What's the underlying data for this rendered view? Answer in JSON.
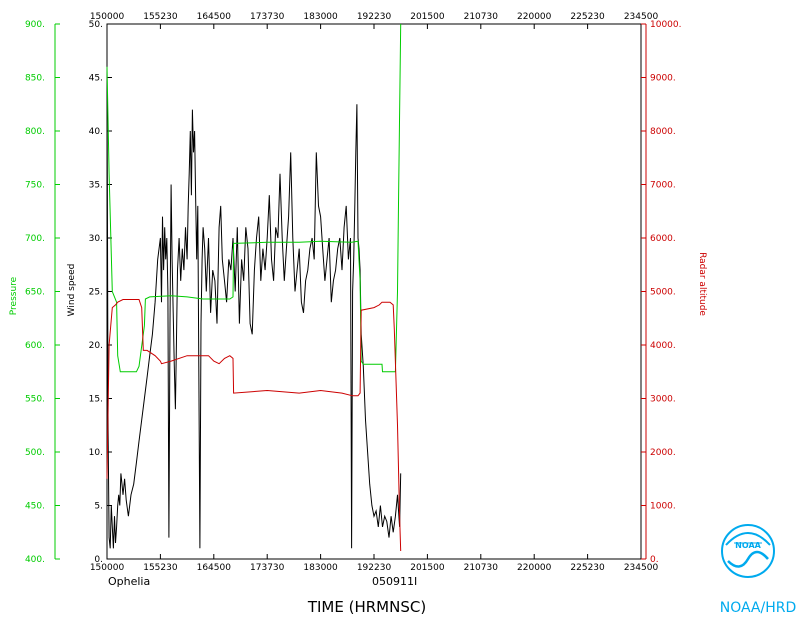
{
  "chart_data": {
    "type": "line",
    "storm": "Ophelia",
    "date_code": "050911I",
    "xlabel": "TIME (HRMNSC)",
    "credit": "NOAA/HRD",
    "colors": {
      "wind": "#000000",
      "pressure": "#00cc00",
      "altitude": "#cc0000"
    },
    "x_ticks": [
      "150000",
      "155230",
      "164500",
      "173730",
      "183000",
      "192230",
      "201500",
      "210730",
      "220000",
      "225230",
      "234500"
    ],
    "axes": {
      "wind": {
        "label": "Wind speed",
        "min": 0,
        "max": 50,
        "ticks": [
          "0.",
          "5.",
          "10.",
          "15.",
          "20.",
          "25.",
          "30.",
          "35.",
          "40.",
          "45.",
          "50."
        ]
      },
      "pressure": {
        "label": "Pressure",
        "min": 400,
        "max": 900,
        "ticks": [
          "400.",
          "450.",
          "500.",
          "550.",
          "600.",
          "650.",
          "700.",
          "750.",
          "800.",
          "850.",
          "900."
        ]
      },
      "altitude": {
        "label": "Radar altitude",
        "min": 0,
        "max": 10000,
        "ticks": [
          "0.",
          "1000.",
          "2000.",
          "3000.",
          "4000.",
          "5000.",
          "6000.",
          "7000.",
          "8000.",
          "9000.",
          "10000."
        ]
      }
    },
    "series": [
      {
        "name": "Wind speed",
        "axis": "wind",
        "points": [
          [
            0,
            45.5
          ],
          [
            0.02,
            12
          ],
          [
            0.04,
            2
          ],
          [
            0.06,
            1
          ],
          [
            0.08,
            5
          ],
          [
            0.1,
            3
          ],
          [
            0.12,
            1
          ],
          [
            0.14,
            4
          ],
          [
            0.16,
            1.5
          ],
          [
            0.18,
            3
          ],
          [
            0.2,
            5
          ],
          [
            0.22,
            6
          ],
          [
            0.24,
            5
          ],
          [
            0.26,
            8
          ],
          [
            0.28,
            7
          ],
          [
            0.3,
            6
          ],
          [
            0.33,
            7.5
          ],
          [
            0.36,
            5.5
          ],
          [
            0.4,
            4
          ],
          [
            0.45,
            6
          ],
          [
            0.5,
            7
          ],
          [
            0.55,
            9
          ],
          [
            0.6,
            11
          ],
          [
            0.65,
            13
          ],
          [
            0.7,
            15
          ],
          [
            0.75,
            17
          ],
          [
            0.8,
            19
          ],
          [
            0.85,
            21
          ],
          [
            0.9,
            24
          ],
          [
            0.95,
            28
          ],
          [
            1.0,
            30
          ],
          [
            1.02,
            24
          ],
          [
            1.04,
            32
          ],
          [
            1.06,
            27
          ],
          [
            1.08,
            31
          ],
          [
            1.1,
            28
          ],
          [
            1.12,
            30
          ],
          [
            1.14,
            25
          ],
          [
            1.16,
            2
          ],
          [
            1.18,
            22
          ],
          [
            1.2,
            35
          ],
          [
            1.22,
            28
          ],
          [
            1.24,
            23
          ],
          [
            1.26,
            18
          ],
          [
            1.28,
            14
          ],
          [
            1.3,
            20
          ],
          [
            1.32,
            27
          ],
          [
            1.35,
            30
          ],
          [
            1.38,
            26
          ],
          [
            1.41,
            29
          ],
          [
            1.44,
            27
          ],
          [
            1.47,
            31
          ],
          [
            1.5,
            28
          ],
          [
            1.52,
            33
          ],
          [
            1.54,
            36
          ],
          [
            1.56,
            40
          ],
          [
            1.58,
            34
          ],
          [
            1.6,
            42
          ],
          [
            1.62,
            38
          ],
          [
            1.64,
            40
          ],
          [
            1.66,
            34
          ],
          [
            1.68,
            28
          ],
          [
            1.7,
            33
          ],
          [
            1.72,
            18
          ],
          [
            1.74,
            1
          ],
          [
            1.76,
            22
          ],
          [
            1.78,
            28
          ],
          [
            1.8,
            31
          ],
          [
            1.83,
            29
          ],
          [
            1.86,
            25
          ],
          [
            1.9,
            30
          ],
          [
            1.94,
            23
          ],
          [
            1.98,
            27
          ],
          [
            2.02,
            26
          ],
          [
            2.06,
            22
          ],
          [
            2.1,
            31
          ],
          [
            2.13,
            33
          ],
          [
            2.16,
            28
          ],
          [
            2.2,
            26
          ],
          [
            2.24,
            24
          ],
          [
            2.28,
            28
          ],
          [
            2.32,
            27
          ],
          [
            2.36,
            30
          ],
          [
            2.4,
            25
          ],
          [
            2.44,
            31
          ],
          [
            2.48,
            22
          ],
          [
            2.52,
            28
          ],
          [
            2.56,
            26
          ],
          [
            2.6,
            31
          ],
          [
            2.64,
            29
          ],
          [
            2.68,
            22
          ],
          [
            2.72,
            21
          ],
          [
            2.76,
            27
          ],
          [
            2.8,
            30
          ],
          [
            2.84,
            32
          ],
          [
            2.88,
            26
          ],
          [
            2.92,
            29
          ],
          [
            2.96,
            27
          ],
          [
            3.0,
            30
          ],
          [
            3.04,
            34
          ],
          [
            3.08,
            28
          ],
          [
            3.12,
            26
          ],
          [
            3.16,
            31
          ],
          [
            3.2,
            30
          ],
          [
            3.24,
            36
          ],
          [
            3.28,
            30
          ],
          [
            3.32,
            26
          ],
          [
            3.36,
            29
          ],
          [
            3.4,
            32
          ],
          [
            3.44,
            38
          ],
          [
            3.48,
            30
          ],
          [
            3.52,
            25
          ],
          [
            3.56,
            27
          ],
          [
            3.6,
            29
          ],
          [
            3.64,
            24
          ],
          [
            3.68,
            23
          ],
          [
            3.72,
            26
          ],
          [
            3.76,
            27
          ],
          [
            3.8,
            29
          ],
          [
            3.84,
            30
          ],
          [
            3.88,
            28
          ],
          [
            3.92,
            38
          ],
          [
            3.96,
            33
          ],
          [
            4.0,
            32
          ],
          [
            4.04,
            29
          ],
          [
            4.08,
            26
          ],
          [
            4.12,
            28
          ],
          [
            4.16,
            30
          ],
          [
            4.2,
            24
          ],
          [
            4.24,
            26
          ],
          [
            4.28,
            27
          ],
          [
            4.32,
            29
          ],
          [
            4.36,
            30
          ],
          [
            4.4,
            27
          ],
          [
            4.44,
            31
          ],
          [
            4.48,
            33
          ],
          [
            4.52,
            28
          ],
          [
            4.56,
            30
          ],
          [
            4.58,
            1
          ],
          [
            4.6,
            25
          ],
          [
            4.62,
            28
          ],
          [
            4.64,
            33
          ],
          [
            4.66,
            38
          ],
          [
            4.68,
            42.5
          ],
          [
            4.7,
            30
          ],
          [
            4.72,
            29
          ],
          [
            4.74,
            27
          ],
          [
            4.76,
            21
          ],
          [
            4.8,
            18
          ],
          [
            4.84,
            13
          ],
          [
            4.88,
            10
          ],
          [
            4.92,
            7
          ],
          [
            4.96,
            5
          ],
          [
            5.0,
            4
          ],
          [
            5.04,
            4.5
          ],
          [
            5.08,
            3
          ],
          [
            5.12,
            5
          ],
          [
            5.16,
            3
          ],
          [
            5.2,
            4
          ],
          [
            5.24,
            3.5
          ],
          [
            5.28,
            2
          ],
          [
            5.32,
            4
          ],
          [
            5.36,
            2.5
          ],
          [
            5.4,
            4
          ],
          [
            5.44,
            6
          ],
          [
            5.48,
            3
          ],
          [
            5.5,
            8
          ]
        ]
      },
      {
        "name": "Pressure",
        "axis": "pressure",
        "points": [
          [
            0,
            860
          ],
          [
            0.04,
            760
          ],
          [
            0.1,
            650
          ],
          [
            0.18,
            640
          ],
          [
            0.2,
            590
          ],
          [
            0.25,
            575
          ],
          [
            0.35,
            575
          ],
          [
            0.55,
            575
          ],
          [
            0.6,
            580
          ],
          [
            0.7,
            618
          ],
          [
            0.72,
            643
          ],
          [
            0.8,
            645
          ],
          [
            1.2,
            646
          ],
          [
            1.5,
            645
          ],
          [
            1.8,
            643
          ],
          [
            2.3,
            643
          ],
          [
            2.36,
            645
          ],
          [
            2.37,
            695
          ],
          [
            3.0,
            696
          ],
          [
            3.6,
            696
          ],
          [
            4.0,
            697
          ],
          [
            4.58,
            696
          ],
          [
            4.7,
            697
          ],
          [
            4.74,
            660
          ],
          [
            4.76,
            585
          ],
          [
            4.8,
            582
          ],
          [
            5.0,
            582
          ],
          [
            5.15,
            582
          ],
          [
            5.16,
            575
          ],
          [
            5.4,
            575
          ],
          [
            5.44,
            650
          ],
          [
            5.46,
            740
          ],
          [
            5.5,
            900
          ]
        ]
      },
      {
        "name": "Radar altitude",
        "axis": "altitude",
        "points": [
          [
            0,
            1500
          ],
          [
            0.04,
            4000
          ],
          [
            0.1,
            4700
          ],
          [
            0.16,
            4750
          ],
          [
            0.2,
            4800
          ],
          [
            0.3,
            4850
          ],
          [
            0.6,
            4850
          ],
          [
            0.65,
            4700
          ],
          [
            0.68,
            3900
          ],
          [
            0.75,
            3900
          ],
          [
            0.9,
            3800
          ],
          [
            1.0,
            3700
          ],
          [
            1.02,
            3650
          ],
          [
            1.2,
            3700
          ],
          [
            1.5,
            3800
          ],
          [
            1.9,
            3800
          ],
          [
            2.0,
            3700
          ],
          [
            2.1,
            3650
          ],
          [
            2.2,
            3750
          ],
          [
            2.3,
            3800
          ],
          [
            2.36,
            3750
          ],
          [
            2.37,
            3100
          ],
          [
            3.0,
            3150
          ],
          [
            3.6,
            3100
          ],
          [
            4.0,
            3150
          ],
          [
            4.4,
            3100
          ],
          [
            4.6,
            3050
          ],
          [
            4.7,
            3050
          ],
          [
            4.74,
            3100
          ],
          [
            4.76,
            4650
          ],
          [
            5.0,
            4700
          ],
          [
            5.1,
            4750
          ],
          [
            5.15,
            4800
          ],
          [
            5.3,
            4800
          ],
          [
            5.36,
            4750
          ],
          [
            5.38,
            4300
          ],
          [
            5.44,
            2500
          ],
          [
            5.48,
            800
          ],
          [
            5.5,
            150
          ]
        ]
      }
    ]
  }
}
